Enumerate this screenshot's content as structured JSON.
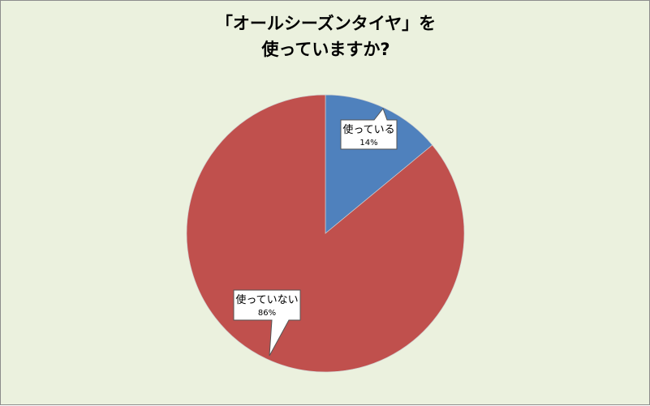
{
  "chart_data": {
    "type": "pie",
    "title": [
      "「オールシーズンタイヤ」を",
      "使っていますか?"
    ],
    "categories": [
      "使っている",
      "使っていない"
    ],
    "values": [
      14,
      86
    ],
    "data_labels": [
      "14%",
      "86%"
    ],
    "colors": [
      "#4F81BD",
      "#C0504D"
    ],
    "start_angle": "top, clockwise",
    "legend": "none",
    "background": "#EBF1DE"
  }
}
